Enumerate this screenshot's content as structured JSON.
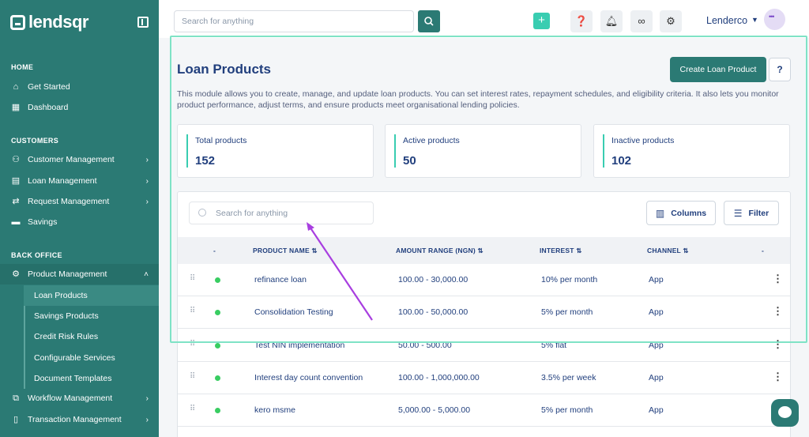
{
  "brand": {
    "name": "lendsqr"
  },
  "sidebar": {
    "sections": [
      {
        "label": "HOME"
      },
      {
        "label": "CUSTOMERS"
      },
      {
        "label": "BACK OFFICE"
      }
    ],
    "items": [
      {
        "label": "Get Started",
        "icon": "home-icon"
      },
      {
        "label": "Dashboard",
        "icon": "dashboard-icon"
      },
      {
        "label": "Customer Management",
        "icon": "users-icon"
      },
      {
        "label": "Loan Management",
        "icon": "loan-icon"
      },
      {
        "label": "Request Management",
        "icon": "request-icon"
      },
      {
        "label": "Savings",
        "icon": "savings-icon"
      },
      {
        "label": "Product Management",
        "icon": "product-icon"
      },
      {
        "label": "Workflow Management",
        "icon": "workflow-icon"
      },
      {
        "label": "Transaction Management",
        "icon": "transaction-icon"
      }
    ],
    "sub_items": [
      {
        "label": "Loan Products"
      },
      {
        "label": "Savings Products"
      },
      {
        "label": "Credit Risk Rules"
      },
      {
        "label": "Configurable Services"
      },
      {
        "label": "Document Templates"
      }
    ]
  },
  "topbar": {
    "search_placeholder": "Search for anything",
    "user_name": "Lenderco"
  },
  "page": {
    "title": "Loan Products",
    "create_button": "Create Loan Product",
    "description": "This module allows you to create, manage, and update loan products. You can set interest rates, repayment schedules, and eligibility criteria. It also lets you monitor product performance, adjust terms, and ensure products meet organisational lending policies."
  },
  "stats": [
    {
      "label": "Total products",
      "value": "152"
    },
    {
      "label": "Active products",
      "value": "50"
    },
    {
      "label": "Inactive products",
      "value": "102"
    }
  ],
  "table": {
    "search_placeholder": "Search for anything",
    "columns_button": "Columns",
    "filter_button": "Filter",
    "headers": {
      "status": "-",
      "product_name": "PRODUCT NAME",
      "amount_range": "AMOUNT RANGE (NGN)",
      "interest": "INTEREST",
      "channel": "CHANNEL",
      "actions": "-"
    },
    "rows": [
      {
        "name": "refinance loan",
        "amount": "100.00 - 30,000.00",
        "interest": "10% per month",
        "channel": "App"
      },
      {
        "name": "Consolidation Testing",
        "amount": "100.00 - 50,000.00",
        "interest": "5% per month",
        "channel": "App"
      },
      {
        "name": "Test NIN implementation",
        "amount": "50.00 - 500.00",
        "interest": "5% flat",
        "channel": "App"
      },
      {
        "name": "Interest day count convention",
        "amount": "100.00 - 1,000,000.00",
        "interest": "3.5% per week",
        "channel": "App"
      },
      {
        "name": "kero msme",
        "amount": "5,000.00 - 5,000.00",
        "interest": "5% per month",
        "channel": "App"
      }
    ]
  },
  "colors": {
    "brand": "#2b7a74",
    "accent": "#39cdb1",
    "active_status": "#39cd62",
    "annotation_arrow": "#a83ee0",
    "highlight_box": "#7fe3c6"
  }
}
